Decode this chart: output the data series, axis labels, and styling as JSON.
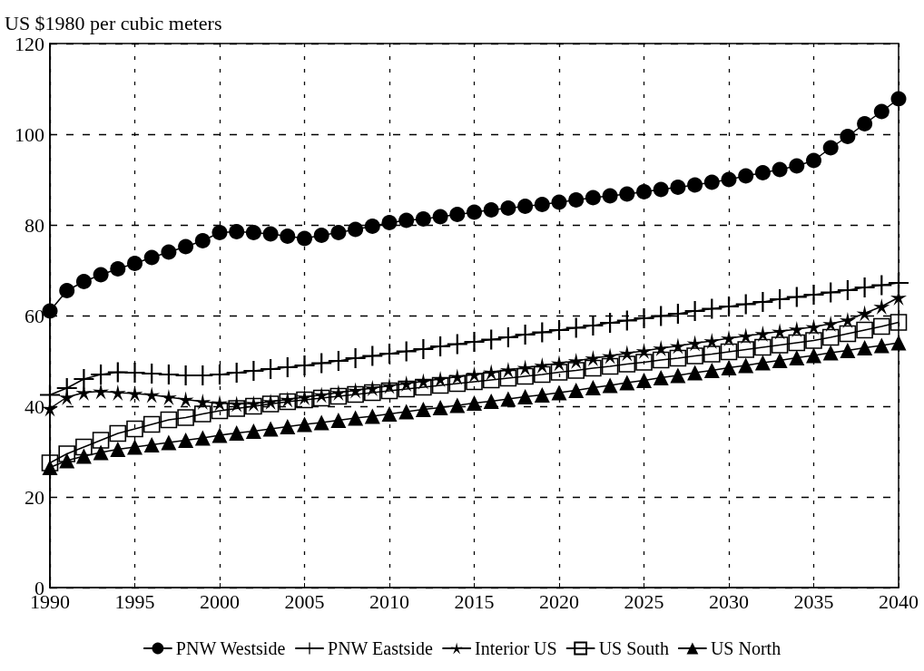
{
  "chart_data": {
    "type": "line",
    "ylabel": "US $1980 per cubic meters",
    "x": [
      1990,
      1991,
      1992,
      1993,
      1994,
      1995,
      1996,
      1997,
      1998,
      1999,
      2000,
      2001,
      2002,
      2003,
      2004,
      2005,
      2006,
      2007,
      2008,
      2009,
      2010,
      2011,
      2012,
      2013,
      2014,
      2015,
      2016,
      2017,
      2018,
      2019,
      2020,
      2021,
      2022,
      2023,
      2024,
      2025,
      2026,
      2027,
      2028,
      2029,
      2030,
      2031,
      2032,
      2033,
      2034,
      2035,
      2036,
      2037,
      2038,
      2039,
      2040
    ],
    "series": [
      {
        "name": "PNW Westside",
        "color": "#000000",
        "marker": "circle",
        "values": [
          61,
          65.5,
          67.5,
          69,
          70.3,
          71.5,
          72.8,
          74,
          75.2,
          76.5,
          78.3,
          78.5,
          78.3,
          78,
          77.5,
          77,
          77.7,
          78.3,
          79,
          79.7,
          80.5,
          81,
          81.3,
          81.8,
          82.3,
          82.8,
          83.3,
          83.7,
          84.1,
          84.5,
          85,
          85.5,
          86,
          86.4,
          86.8,
          87.3,
          87.8,
          88.3,
          88.8,
          89.4,
          90,
          90.8,
          91.5,
          92.2,
          93,
          94.2,
          97,
          99.5,
          102.3,
          105,
          107.8
        ]
      },
      {
        "name": "PNW Eastside",
        "color": "#000000",
        "marker": "cross",
        "values": [
          42.5,
          44,
          46,
          47,
          47.5,
          47.4,
          47.2,
          47,
          46.8,
          46.8,
          47,
          47.4,
          47.8,
          48.2,
          48.6,
          49,
          49.5,
          50,
          50.6,
          51.1,
          51.6,
          52.1,
          52.6,
          53.2,
          53.7,
          54.2,
          54.7,
          55.2,
          55.8,
          56.3,
          56.8,
          57.3,
          57.8,
          58.4,
          58.9,
          59.4,
          59.9,
          60.4,
          61,
          61.5,
          62,
          62.5,
          63,
          63.6,
          64.1,
          64.6,
          65.1,
          65.6,
          66.2,
          66.7,
          67.2
        ]
      },
      {
        "name": "Interior US",
        "color": "#000000",
        "marker": "star",
        "values": [
          39.5,
          42,
          43,
          43.3,
          43,
          42.8,
          42.5,
          42,
          41.5,
          41,
          40.7,
          40.5,
          40.6,
          41,
          41.5,
          42,
          42.5,
          43,
          43.5,
          44,
          44.5,
          45,
          45.5,
          46,
          46.5,
          47,
          47.5,
          48,
          48.5,
          49,
          49.5,
          50,
          50.6,
          51.1,
          51.7,
          52.2,
          52.8,
          53.3,
          53.9,
          54.4,
          55,
          55.5,
          56,
          56.5,
          57,
          57.5,
          58.2,
          59,
          60.5,
          62,
          64
        ]
      },
      {
        "name": "US South",
        "color": "#000000",
        "marker": "square",
        "values": [
          27.5,
          29.5,
          31,
          32.5,
          34,
          35,
          36,
          37,
          37.5,
          38.3,
          39,
          39.5,
          40,
          40.5,
          41,
          41.4,
          41.8,
          42.2,
          42.6,
          43,
          43.4,
          43.8,
          44.2,
          44.6,
          45,
          45.4,
          45.8,
          46.2,
          46.6,
          47,
          47.5,
          47.9,
          48.4,
          48.8,
          49.3,
          49.7,
          50.2,
          50.6,
          51.1,
          51.5,
          52,
          52.5,
          53,
          53.5,
          54,
          54.5,
          55.2,
          56,
          56.8,
          57.6,
          58.5
        ]
      },
      {
        "name": "US North",
        "color": "#000000",
        "marker": "triangle",
        "values": [
          26.5,
          28,
          29,
          29.8,
          30.5,
          31,
          31.5,
          32,
          32.5,
          33,
          33.6,
          34.1,
          34.5,
          35,
          35.5,
          36,
          36.4,
          36.9,
          37.4,
          37.8,
          38.3,
          38.8,
          39.3,
          39.7,
          40.2,
          40.7,
          41.1,
          41.6,
          42.1,
          42.5,
          43,
          43.5,
          44.1,
          44.6,
          45.2,
          45.7,
          46.3,
          46.8,
          47.4,
          47.9,
          48.5,
          49,
          49.6,
          50.1,
          50.7,
          51.2,
          51.8,
          52.3,
          52.9,
          53.4,
          54
        ]
      }
    ],
    "xlim": [
      1990,
      2040
    ],
    "xticks": [
      1990,
      1995,
      2000,
      2005,
      2010,
      2015,
      2020,
      2025,
      2030,
      2035,
      2040
    ],
    "ylim": [
      0,
      120
    ],
    "yticks": [
      0,
      20,
      40,
      60,
      80,
      100,
      120
    ],
    "grid": true,
    "legend": "bottom",
    "line_style": "solid"
  }
}
